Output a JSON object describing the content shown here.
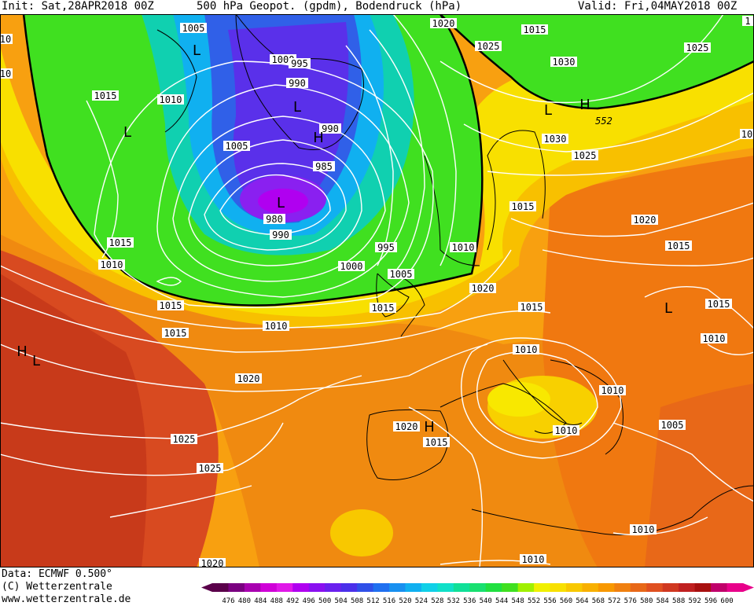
{
  "header": {
    "init": "Init: Sat,28APR2018 00Z",
    "title": "500 hPa Geopot. (gpdm), Bodendruck (hPa)",
    "valid": "Valid: Fri,04MAY2018 00Z"
  },
  "footer": {
    "data_line": "Data: ECMWF  0.500°",
    "copyright": "(C) Wetterzentrale",
    "website": "www.wetterzentrale.de"
  },
  "colorbar": {
    "ticks": [
      476,
      480,
      484,
      488,
      492,
      496,
      500,
      504,
      508,
      512,
      516,
      520,
      524,
      528,
      532,
      536,
      540,
      544,
      548,
      552,
      556,
      560,
      564,
      568,
      572,
      576,
      580,
      584,
      588,
      592,
      596,
      600
    ],
    "colors": [
      "#5a004a",
      "#7a0080",
      "#a800b0",
      "#d000d8",
      "#e018e8",
      "#b000f0",
      "#8a10f0",
      "#6a20ee",
      "#4a30ea",
      "#3050e8",
      "#2070f0",
      "#1890f0",
      "#10b0f0",
      "#10d0e8",
      "#10e0c8",
      "#10e098",
      "#18e070",
      "#20e040",
      "#40e020",
      "#a0f000",
      "#f0f000",
      "#f8e000",
      "#f8c800",
      "#f8b000",
      "#f89800",
      "#f08010",
      "#e86818",
      "#e05020",
      "#d03820",
      "#c02020",
      "#a81010",
      "#c0006a",
      "#e8008a"
    ]
  },
  "pressure_labels": [
    "1005",
    "1000",
    "995",
    "990",
    "990",
    "985",
    "980",
    "990",
    "1005",
    "1015",
    "1010",
    "1020",
    "1015",
    "1025",
    "1030",
    "1025",
    "1030",
    "1025",
    "552",
    "1015",
    "1010",
    "1000",
    "995",
    "1010",
    "1005",
    "1015",
    "1010",
    "1015",
    "1020",
    "1025",
    "1025",
    "1020",
    "1015",
    "1020",
    "1015",
    "1015",
    "1015",
    "1010",
    "1010",
    "1010",
    "1005",
    "1010",
    "1010",
    "1020",
    "1010",
    "1015",
    "1015",
    "1020",
    "10",
    "10",
    "10",
    "1"
  ],
  "pressure_centers": [
    "L",
    "L",
    "L",
    "L",
    "H",
    "L",
    "H",
    "L",
    "H",
    "L",
    "H",
    "L"
  ]
}
